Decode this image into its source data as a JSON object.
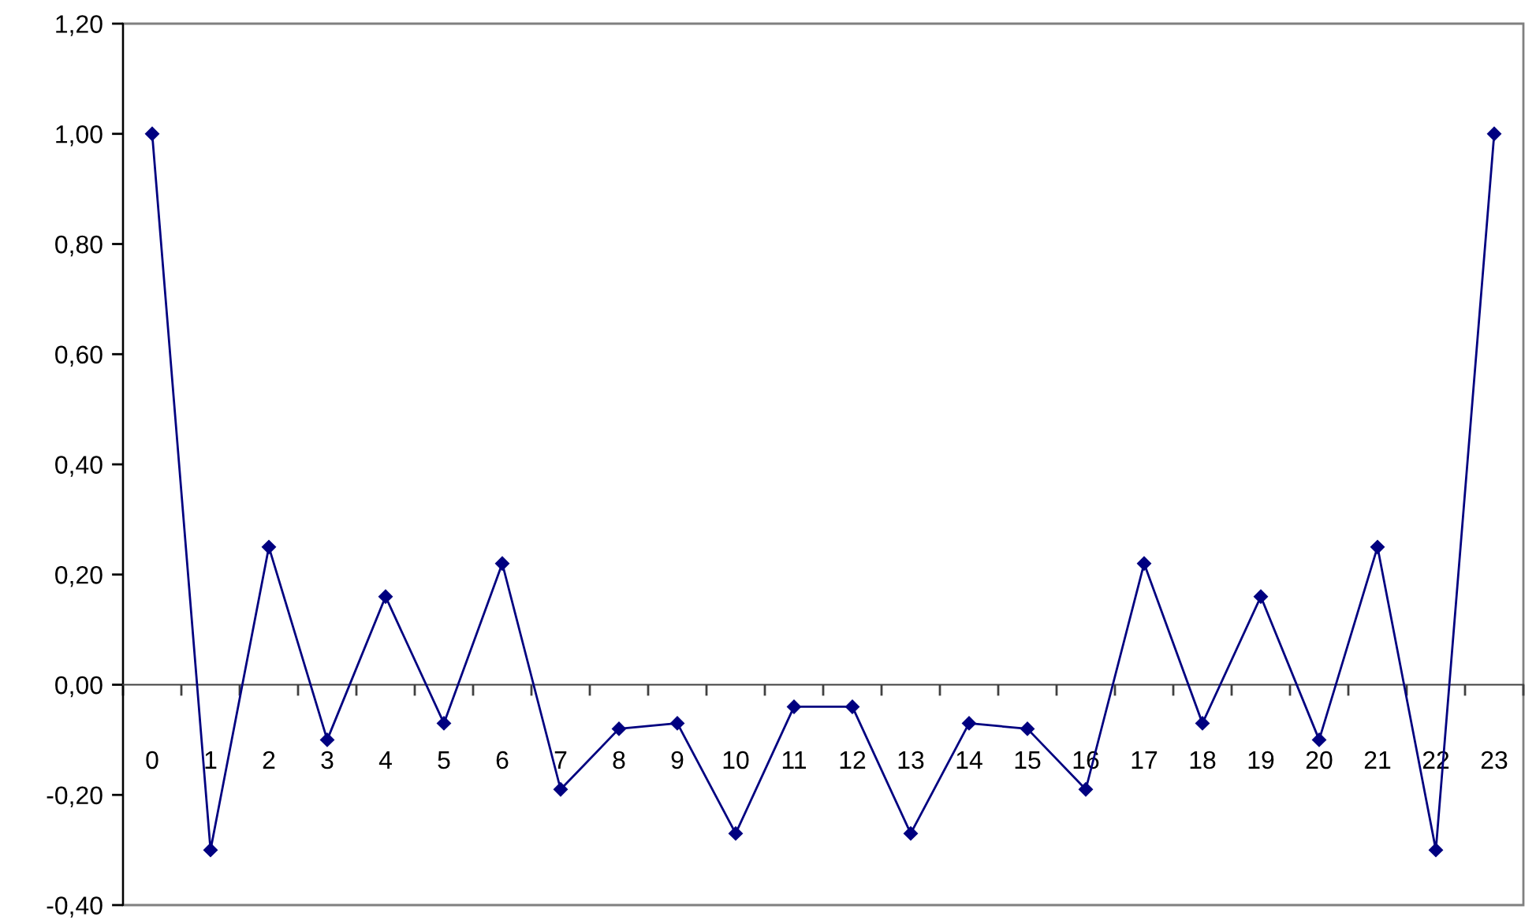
{
  "chart_data": {
    "type": "line",
    "categories": [
      "0",
      "1",
      "2",
      "3",
      "4",
      "5",
      "6",
      "7",
      "8",
      "9",
      "10",
      "11",
      "12",
      "13",
      "14",
      "15",
      "16",
      "17",
      "18",
      "19",
      "20",
      "21",
      "22",
      "23"
    ],
    "values": [
      1.0,
      -0.3,
      0.25,
      -0.1,
      0.16,
      -0.07,
      0.22,
      -0.19,
      -0.08,
      -0.07,
      -0.27,
      -0.04,
      -0.04,
      -0.27,
      -0.07,
      -0.08,
      -0.19,
      0.22,
      -0.07,
      0.16,
      -0.1,
      0.25,
      -0.3,
      1.0
    ],
    "color": "#000080",
    "marker": "diamond",
    "line_style": "solid",
    "ylim": [
      -0.4,
      1.2
    ],
    "yticks": [
      {
        "value": -0.4,
        "label": "-0,40"
      },
      {
        "value": -0.2,
        "label": "-0,20"
      },
      {
        "value": 0,
        "label": "0,00"
      },
      {
        "value": 0.2,
        "label": "0,20"
      },
      {
        "value": 0.4,
        "label": "0,40"
      },
      {
        "value": 0.6,
        "label": "0,60"
      },
      {
        "value": 0.8,
        "label": "0,80"
      },
      {
        "value": 1.0,
        "label": "1,00"
      },
      {
        "value": 1.2,
        "label": "1,20"
      }
    ]
  }
}
